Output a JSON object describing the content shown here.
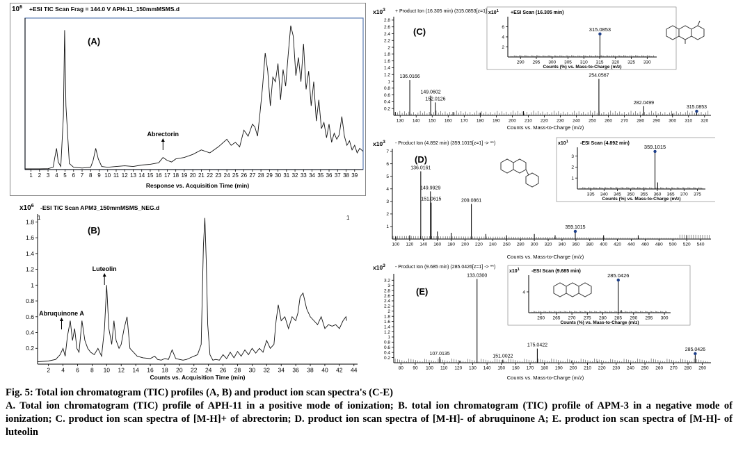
{
  "chart_data": [
    {
      "id": "A",
      "type": "line",
      "panel_letter": "(A)",
      "scale_exp": "10",
      "scale_sup": "6",
      "header": "+ESI TIC Scan Frag = 144.0 V APH-11_150mmMSMS.d",
      "xlabel": "Response vs. Acquisition Time (min)",
      "x_ticks": [
        1,
        2,
        3,
        4,
        5,
        6,
        7,
        8,
        9,
        10,
        11,
        12,
        13,
        14,
        15,
        16,
        17,
        18,
        19,
        20,
        21,
        22,
        23,
        24,
        25,
        26,
        27,
        28,
        29,
        30,
        31,
        32,
        33,
        34,
        35,
        36,
        37,
        38,
        39
      ],
      "xlim": [
        0.3,
        40
      ],
      "ylim": [
        0,
        10
      ],
      "y_ticks": [],
      "series": [
        {
          "x": [
            0.3,
            2,
            3,
            3.6,
            3.8,
            4.0,
            4.2,
            4.5,
            4.8,
            4.95,
            5.1,
            5.5,
            6,
            7,
            8,
            8.3,
            8.6,
            8.9,
            9.3,
            10,
            11,
            12,
            13,
            14,
            15,
            16,
            16.5,
            17,
            17.5,
            18,
            19,
            20,
            21,
            22,
            23,
            24,
            24.5,
            25,
            25.5,
            26,
            26.5,
            27,
            27.3,
            27.6,
            27.9,
            28.2,
            28.5,
            28.8,
            29.1,
            29.4,
            29.7,
            30.0,
            30.3,
            30.6,
            30.9,
            31.2,
            31.5,
            31.8,
            32.1,
            32.4,
            32.7,
            33.0,
            33.3,
            33.6,
            33.9,
            34.2,
            34.5,
            34.8,
            35.1,
            35.4,
            35.7,
            36.0,
            36.3,
            36.6,
            36.9,
            37.2,
            37.5,
            37.8,
            38.1,
            38.4,
            38.7,
            39.0,
            39.3,
            39.6,
            40
          ],
          "y": [
            0.05,
            0.05,
            0.06,
            0.15,
            0.8,
            1.4,
            0.5,
            0.2,
            3.5,
            9.2,
            4.2,
            0.4,
            0.15,
            0.1,
            0.15,
            0.6,
            1.4,
            0.7,
            0.2,
            0.15,
            0.2,
            0.25,
            0.2,
            0.3,
            0.35,
            0.45,
            0.8,
            0.6,
            0.5,
            0.7,
            0.8,
            1.0,
            1.3,
            1.1,
            1.5,
            2.0,
            1.6,
            1.8,
            1.5,
            2.6,
            2.2,
            3.0,
            2.8,
            2.2,
            3.8,
            5.5,
            7.7,
            6.5,
            4.2,
            6.1,
            5.8,
            7.0,
            4.6,
            6.6,
            5.5,
            7.6,
            9.5,
            8.8,
            6.2,
            7.4,
            5.8,
            8.3,
            5.3,
            6.5,
            4.2,
            5.8,
            3.2,
            4.6,
            2.7,
            3.1,
            2.1,
            3.0,
            1.8,
            2.4,
            2.0,
            2.3,
            3.5,
            2.2,
            1.6,
            1.9,
            1.3,
            1.6,
            1.1,
            1.4,
            1.2
          ]
        }
      ],
      "annotations": [
        {
          "label": "Abrectorin",
          "x": 16.5
        }
      ]
    },
    {
      "id": "B",
      "type": "line",
      "panel_letter": "(B)",
      "scale_exp": "x10",
      "scale_sup": "6",
      "header": "-ESI TIC Scan APM3_150mmMSMS_NEG.d",
      "header_index": "1",
      "header_index_right": "1",
      "xlabel": "Counts vs. Acquisition Time (min)",
      "x_ticks": [
        2,
        4,
        6,
        8,
        10,
        12,
        14,
        16,
        18,
        20,
        22,
        24,
        26,
        28,
        30,
        32,
        34,
        36,
        38,
        40,
        42,
        44
      ],
      "xlim": [
        0.5,
        44.5
      ],
      "ylim": [
        0,
        1.9
      ],
      "y_ticks": [
        0.2,
        0.4,
        0.6,
        0.8,
        1,
        1.2,
        1.4,
        1.6,
        1.8
      ],
      "series": [
        {
          "x": [
            0.5,
            2,
            3,
            3.6,
            4.0,
            4.3,
            4.6,
            5.0,
            5.3,
            5.6,
            5.9,
            6.2,
            6.6,
            7.0,
            7.4,
            7.8,
            8.3,
            8.8,
            9.3,
            9.7,
            10.0,
            10.3,
            10.7,
            11.0,
            11.3,
            11.7,
            12.0,
            12.4,
            12.8,
            13.2,
            13.7,
            14.2,
            15,
            16,
            16.6,
            17,
            17.5,
            18,
            18.5,
            19,
            19.5,
            20,
            20.5,
            21,
            21.5,
            22,
            22.5,
            23,
            23.3,
            23.5,
            23.7,
            23.9,
            24.2,
            24.6,
            25,
            25.5,
            26,
            26.5,
            27,
            27.5,
            28,
            28.5,
            29,
            29.5,
            30,
            30.5,
            31,
            31.5,
            32,
            32.5,
            33,
            33.3,
            33.6,
            34,
            34.5,
            35,
            35.5,
            36,
            36.3,
            36.6,
            37,
            37.5,
            38,
            38.5,
            39,
            39.5,
            40,
            40.5,
            41,
            41.5,
            42,
            42.5,
            42.9,
            43
          ],
          "y": [
            0.03,
            0.04,
            0.06,
            0.12,
            0.2,
            0.1,
            0.35,
            0.55,
            0.3,
            0.45,
            0.2,
            0.15,
            0.55,
            0.3,
            0.2,
            0.15,
            0.12,
            0.2,
            0.1,
            0.45,
            1.0,
            0.45,
            0.25,
            0.55,
            0.3,
            0.2,
            0.25,
            0.45,
            0.6,
            0.2,
            0.15,
            0.1,
            0.08,
            0.07,
            0.1,
            0.06,
            0.05,
            0.07,
            0.06,
            0.18,
            0.07,
            0.06,
            0.05,
            0.06,
            0.08,
            0.1,
            0.12,
            0.25,
            1.5,
            1.85,
            1.3,
            0.5,
            0.12,
            0.05,
            0.06,
            0.05,
            0.12,
            0.07,
            0.15,
            0.08,
            0.16,
            0.1,
            0.18,
            0.12,
            0.2,
            0.14,
            0.2,
            0.15,
            0.3,
            0.2,
            0.25,
            0.55,
            0.75,
            0.55,
            0.6,
            0.45,
            0.6,
            0.55,
            0.65,
            0.85,
            0.9,
            0.7,
            0.6,
            0.55,
            0.5,
            0.6,
            0.45,
            0.5,
            0.48,
            0.5,
            0.45,
            0.55,
            0.6,
            0.55
          ]
        }
      ],
      "annotations": [
        {
          "label": "Abruquinone A",
          "x": 3.8
        },
        {
          "label": "Luteolin",
          "x": 9.7
        }
      ]
    },
    {
      "id": "C",
      "type": "bar",
      "panel_letter": "(C)",
      "scale_exp": "x10",
      "scale_sup": "3",
      "header": "+ Product Ion (16.305 min) (315.0853[z=1] -> **)",
      "xlabel": "Counts vs. Mass-to-Charge (m/z)",
      "x_ticks": [
        130,
        140,
        150,
        160,
        170,
        180,
        190,
        200,
        210,
        220,
        230,
        240,
        250,
        260,
        270,
        280,
        290,
        300,
        310,
        320
      ],
      "xlim": [
        126,
        324
      ],
      "ylim": [
        0,
        2.9
      ],
      "y_ticks": [
        0.2,
        0.4,
        0.6,
        0.8,
        1,
        1.2,
        1.4,
        1.6,
        1.8,
        2,
        2.2,
        2.4,
        2.6,
        2.8
      ],
      "peaks": [
        {
          "mz": 127,
          "i": 0.1
        },
        {
          "mz": 136.0166,
          "i": 1.04,
          "label": "136.0166"
        },
        {
          "mz": 149.0602,
          "i": 0.58,
          "label": "149.0602"
        },
        {
          "mz": 152.0126,
          "i": 0.38,
          "label": "152.0126"
        },
        {
          "mz": 163,
          "i": 0.1
        },
        {
          "mz": 180,
          "i": 0.08
        },
        {
          "mz": 207,
          "i": 0.12
        },
        {
          "mz": 254.0567,
          "i": 1.07,
          "label": "254.0567"
        },
        {
          "mz": 282.0499,
          "i": 0.27,
          "label": "282.0499"
        },
        {
          "mz": 300,
          "i": 0.05
        },
        {
          "mz": 315.0853,
          "i": 0.08,
          "label": "315.0853",
          "marker": true
        }
      ],
      "inset": {
        "scale_exp": "x10",
        "scale_sup": "1",
        "header": "+ESI Scan (16.305 min)",
        "xlabel": "Counts (%) vs. Mass-to-Charge (m/z)",
        "x_ticks": [
          290,
          295,
          300,
          305,
          310,
          315,
          320,
          325,
          330
        ],
        "xlim": [
          286,
          333
        ],
        "ylim": [
          0,
          8
        ],
        "y_ticks": [
          2,
          4,
          6
        ],
        "peaks": [
          {
            "mz": 315.0853,
            "i": 4.3,
            "label": "315.0853",
            "marker": true
          }
        ]
      }
    },
    {
      "id": "D",
      "type": "bar",
      "panel_letter": "(D)",
      "scale_exp": "x10",
      "scale_sup": "3",
      "header": "- Product Ion (4.892 min) (359.1015[z=1] -> **)",
      "xlabel": "Counts vs. Mass-to-Charge (m/z)",
      "x_ticks": [
        100,
        120,
        140,
        160,
        180,
        200,
        220,
        240,
        260,
        280,
        300,
        320,
        340,
        360,
        380,
        400,
        420,
        440,
        460,
        480,
        500,
        520,
        540
      ],
      "xlim": [
        95,
        555
      ],
      "ylim": [
        0,
        7.2
      ],
      "y_ticks": [
        1,
        2,
        3,
        4,
        5,
        6,
        7
      ],
      "peaks": [
        {
          "mz": 100,
          "i": 0.2
        },
        {
          "mz": 120,
          "i": 0.3
        },
        {
          "mz": 136.0161,
          "i": 5.4,
          "label": "136.0161"
        },
        {
          "mz": 149.9929,
          "i": 3.8,
          "label": "149.9929"
        },
        {
          "mz": 151.0615,
          "i": 2.9,
          "label": "151.0615"
        },
        {
          "mz": 160,
          "i": 0.6
        },
        {
          "mz": 180,
          "i": 0.5
        },
        {
          "mz": 209.0861,
          "i": 2.8,
          "label": "209.0861"
        },
        {
          "mz": 230,
          "i": 0.4
        },
        {
          "mz": 260,
          "i": 0.3
        },
        {
          "mz": 300,
          "i": 0.4
        },
        {
          "mz": 330,
          "i": 0.3
        },
        {
          "mz": 359.1015,
          "i": 0.5,
          "label": "359.1015",
          "marker": true
        },
        {
          "mz": 400,
          "i": 0.3
        },
        {
          "mz": 450,
          "i": 0.3
        },
        {
          "mz": 520,
          "i": 0.3
        }
      ],
      "inset": {
        "scale_exp": "x10",
        "scale_sup": "1",
        "header": "-ESI Scan (4.892 min)",
        "xlabel": "Counts (%) vs. Mass-to-Charge (m/z)",
        "x_ticks": [
          335,
          340,
          345,
          350,
          355,
          360,
          365,
          370,
          375
        ],
        "xlim": [
          330,
          378
        ],
        "ylim": [
          0,
          3.8
        ],
        "y_ticks": [
          1,
          2,
          3
        ],
        "peaks": [
          {
            "mz": 359.1015,
            "i": 3.3,
            "label": "359.1015",
            "marker": true
          },
          {
            "mz": 360.1,
            "i": 0.6
          }
        ]
      }
    },
    {
      "id": "E",
      "type": "bar",
      "panel_letter": "(E)",
      "scale_exp": "x10",
      "scale_sup": "3",
      "header": "- Product Ion (9.685 min) (285.0426[z=1] -> **)",
      "xlabel": "Counts vs. Mass-to-Charge (m/z)",
      "x_ticks": [
        80,
        90,
        100,
        110,
        120,
        130,
        140,
        150,
        160,
        170,
        180,
        190,
        200,
        210,
        220,
        230,
        240,
        250,
        260,
        270,
        280,
        290
      ],
      "xlim": [
        75,
        296
      ],
      "ylim": [
        0,
        3.45
      ],
      "y_ticks": [
        0.2,
        0.4,
        0.6,
        0.8,
        1,
        1.2,
        1.4,
        1.6,
        1.8,
        2,
        2.2,
        2.4,
        2.6,
        2.8,
        3,
        3.2
      ],
      "peaks": [
        {
          "mz": 107.0135,
          "i": 0.22,
          "label": "107.0135"
        },
        {
          "mz": 121,
          "i": 0.08
        },
        {
          "mz": 133.03,
          "i": 3.25,
          "label": "133.0300"
        },
        {
          "mz": 151.0022,
          "i": 0.12,
          "label": "151.0022"
        },
        {
          "mz": 175.0422,
          "i": 0.55,
          "label": "175.0422"
        },
        {
          "mz": 199,
          "i": 0.08
        },
        {
          "mz": 217,
          "i": 0.05
        },
        {
          "mz": 285.0426,
          "i": 0.3,
          "label": "285.0426",
          "marker": true
        }
      ],
      "inset": {
        "scale_exp": "x10",
        "scale_sup": "1",
        "header": "-ESI Scan (9.685 min)",
        "xlabel": "Counts (%) vs. Mass-to-Charge (m/z)",
        "x_ticks": [
          260,
          265,
          270,
          275,
          280,
          285,
          290,
          295,
          300
        ],
        "xlim": [
          256,
          302
        ],
        "ylim": [
          0,
          7.2
        ],
        "y_ticks": [
          4
        ],
        "peaks": [
          {
            "mz": 285.0426,
            "i": 6.0,
            "label": "285.0426",
            "marker": true
          },
          {
            "mz": 286,
            "i": 0.5
          }
        ]
      }
    }
  ],
  "caption": {
    "title": "Fig. 5: Total ion chromatogram (TIC) profiles (A, B) and product ion scan spectra's (C-E)",
    "body": "A. Total ion chromatogram (TIC) profile of APH-11 in a positive mode of ionization; B. total ion chromatogram (TIC) profile of APM-3 in a negative mode of ionization; C. product ion scan spectra of [M-H]+ of abrectorin; D. product ion scan spectra of [M-H]- of abruquinone A; E. product ion scan spectra of [M-H]- of luteolin"
  }
}
